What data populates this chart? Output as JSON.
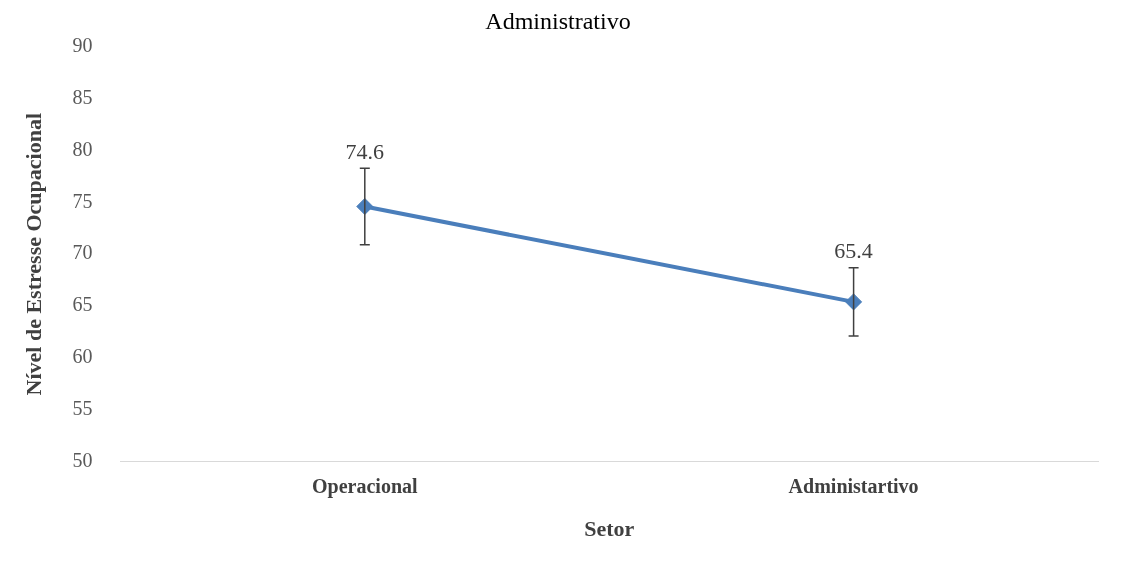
{
  "chart_data": {
    "type": "line",
    "title": "Administrativo",
    "xlabel": "Setor",
    "ylabel": "Nível de Estresse Ocupacional",
    "categories": [
      "Operacional",
      "Administartivo"
    ],
    "series": [
      {
        "color": "#4a7ebb",
        "values": [
          74.6,
          65.4
        ],
        "errors": [
          3.7,
          3.3
        ]
      }
    ],
    "ylim": [
      50,
      90
    ],
    "yticks": [
      50,
      55,
      60,
      65,
      70,
      75,
      80,
      85,
      90
    ],
    "grid": false,
    "legend": false,
    "marker": "diamond",
    "line_style": "solid",
    "data_labels": true
  }
}
